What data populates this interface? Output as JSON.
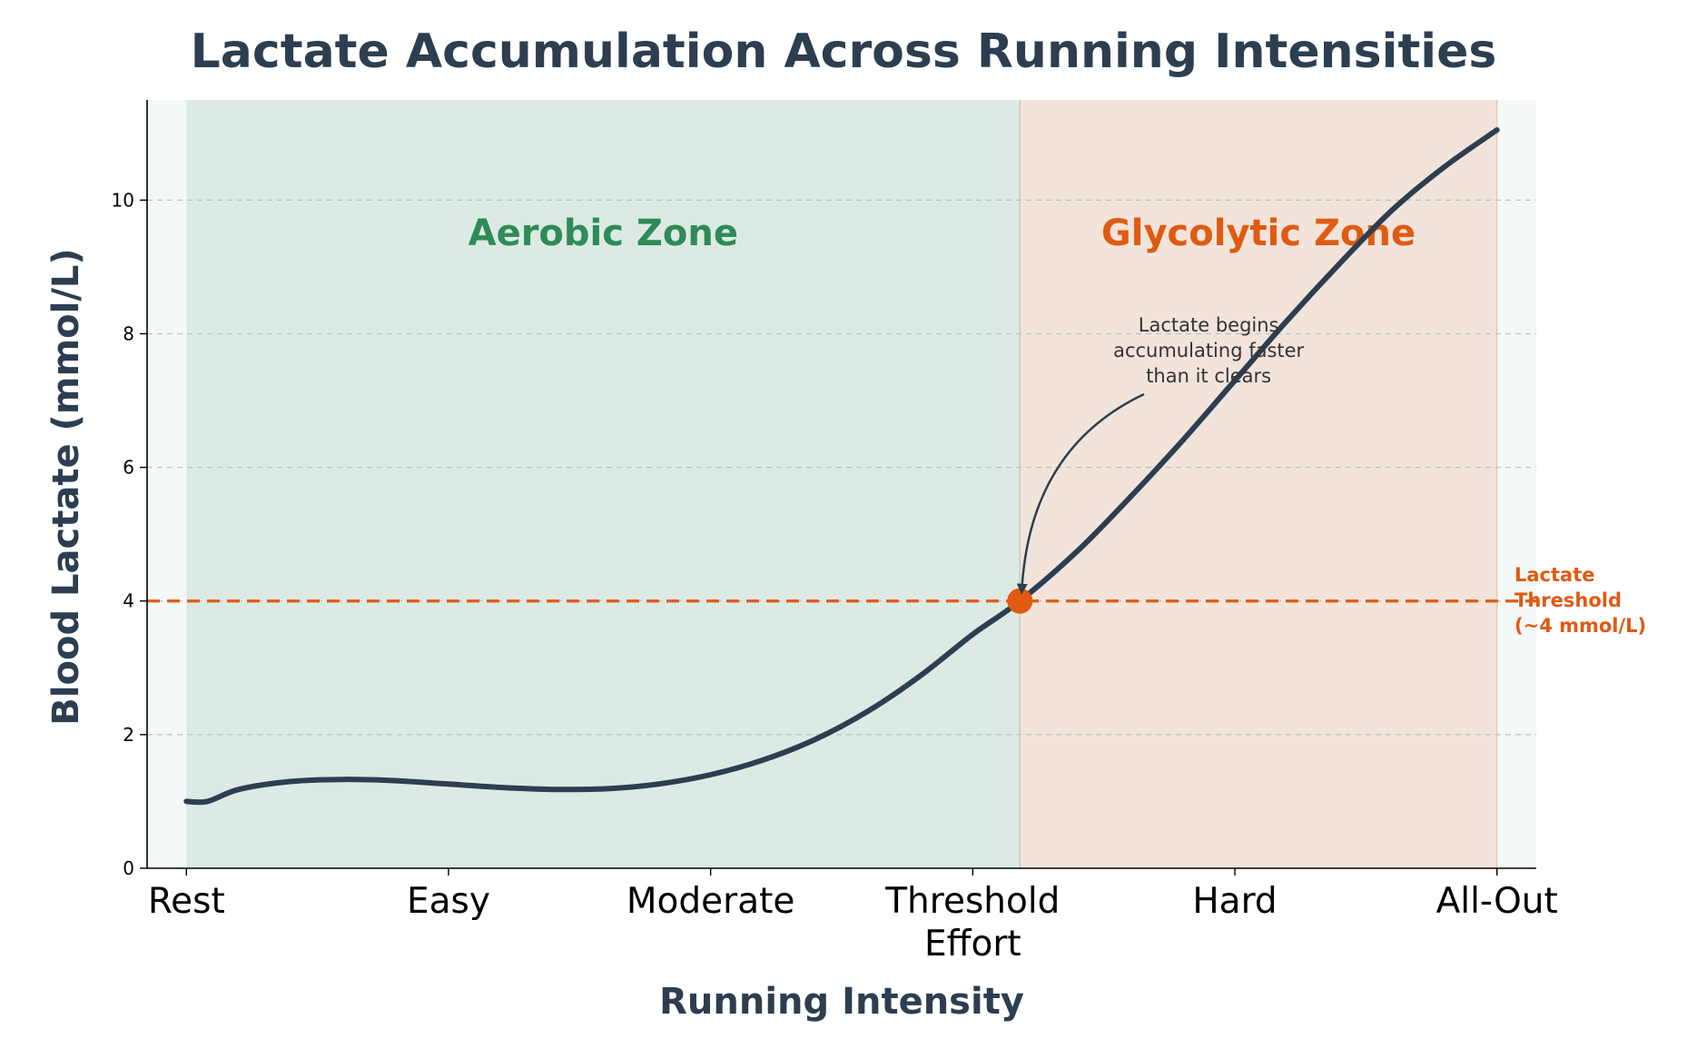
{
  "chart_data": {
    "type": "line",
    "title": "Lactate Accumulation Across Running Intensities",
    "xlabel": "Running Intensity",
    "ylabel": "Blood Lactate (mmol/L)",
    "categories": [
      "Rest",
      "Easy",
      "Moderate",
      "Threshold\nEffort",
      "Hard",
      "All-Out"
    ],
    "xlim": [
      -0.15,
      5.15
    ],
    "ylim": [
      0,
      11.5
    ],
    "yticks": [
      0,
      2,
      4,
      6,
      8,
      10
    ],
    "grid": "y-dashed",
    "series": [
      {
        "color": "#2c3e50",
        "x": [
          0,
          0.08,
          0.2,
          0.4,
          0.6,
          0.8,
          1.0,
          1.2,
          1.4,
          1.6,
          1.8,
          2.0,
          2.2,
          2.4,
          2.6,
          2.8,
          3.0,
          3.18,
          3.4,
          3.6,
          3.8,
          4.0,
          4.2,
          4.4,
          4.6,
          4.8,
          5.0
        ],
        "y": [
          1.0,
          1.0,
          1.18,
          1.3,
          1.33,
          1.31,
          1.26,
          1.21,
          1.18,
          1.19,
          1.26,
          1.4,
          1.62,
          1.93,
          2.35,
          2.88,
          3.5,
          4.0,
          4.75,
          5.55,
          6.4,
          7.3,
          8.2,
          9.05,
          9.85,
          10.5,
          11.05
        ]
      }
    ],
    "zones": [
      {
        "label": "Aerobic Zone",
        "x_start": 0,
        "x_end": 3.18,
        "color": "#2e8b57"
      },
      {
        "label": "Glycolytic Zone",
        "x_start": 3.18,
        "x_end": 5.0,
        "color": "#e05a12"
      }
    ],
    "threshold": {
      "y": 4,
      "x": 3.18,
      "label_lines": [
        "Lactate",
        "Threshold",
        "(~4 mmol/L)"
      ],
      "color": "#e05a12"
    },
    "annotation": {
      "lines": [
        "Lactate begins",
        "accumulating faster",
        "than it clears"
      ],
      "text_x": 3.9,
      "text_y": 7.3,
      "point_x": 3.18,
      "point_y": 4.0
    }
  }
}
